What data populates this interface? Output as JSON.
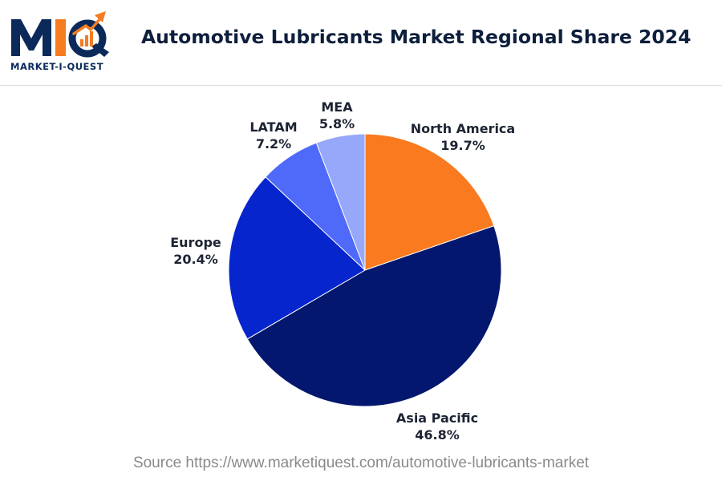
{
  "header": {
    "logo_text": "MARKET-I-QUEST",
    "title": "Automotive Lubricants Market Regional Share 2024"
  },
  "footer": {
    "source": "Source https://www.marketiquest.com/automotive-lubricants-market"
  },
  "colors": {
    "navy": "#0b2a5a",
    "orange": "#f57c20"
  },
  "chart_data": {
    "type": "pie",
    "title": "Automotive Lubricants Market Regional Share 2024",
    "start": "12 o'clock",
    "direction": "clockwise",
    "legend": "none",
    "slices": [
      {
        "label": "North America",
        "value": 19.7,
        "display": "19.7%",
        "color": "#f97a1f"
      },
      {
        "label": "Asia Pacific",
        "value": 46.8,
        "display": "46.8%",
        "color": "#03176e"
      },
      {
        "label": "Europe",
        "value": 20.4,
        "display": "20.4%",
        "color": "#0625cc"
      },
      {
        "label": "LATAM",
        "value": 7.2,
        "display": "7.2%",
        "color": "#4f6af9"
      },
      {
        "label": "MEA",
        "value": 5.8,
        "display": "5.8%",
        "color": "#97a8fb"
      }
    ]
  }
}
